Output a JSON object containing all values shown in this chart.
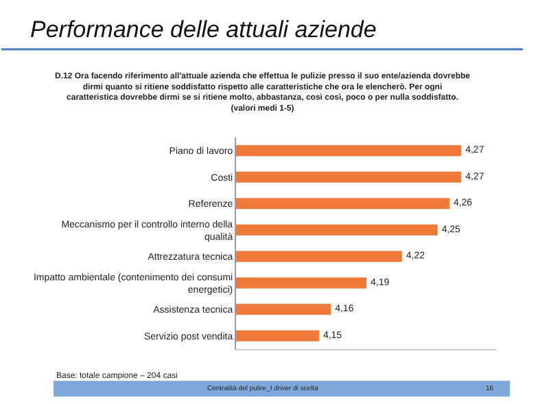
{
  "chart_data": {
    "type": "bar",
    "orientation": "horizontal",
    "title": "Performance delle attuali aziende",
    "subtitle": "D.12 Ora facendo riferimento all'attuale azienda che effettua le pulizie presso il suo ente/azienda dovrebbe dirmi quanto si ritiene soddisfatto rispetto alle caratteristiche che ora le elencherò. Per ogni caratteristica dovrebbe dirmi se si ritiene molto, abbastanza, così così, poco o per nulla soddisfatto. (valori medi 1-5)",
    "categories": [
      "Piano di lavoro",
      "Costi",
      "Referenze",
      "Meccanismo per il controllo interno della qualità",
      "Attrezzatura tecnica",
      "Impatto ambientale (contenimento dei consumi energetici)",
      "Assistenza tecnica",
      "Servizio post vendita"
    ],
    "values": [
      4.27,
      4.27,
      4.26,
      4.25,
      4.22,
      4.19,
      4.16,
      4.15
    ],
    "value_labels": [
      "4,27",
      "4,27",
      "4,26",
      "4,25",
      "4,22",
      "4,19",
      "4,16",
      "4,15"
    ],
    "color": "#f07a3c",
    "xlim": [
      4.08,
      4.3
    ],
    "tick_labels": "y",
    "legend": false,
    "annotations": [
      "Base: totale campione – 204 casi",
      "Centralità del pulire_I driver di scelta",
      "16"
    ]
  }
}
